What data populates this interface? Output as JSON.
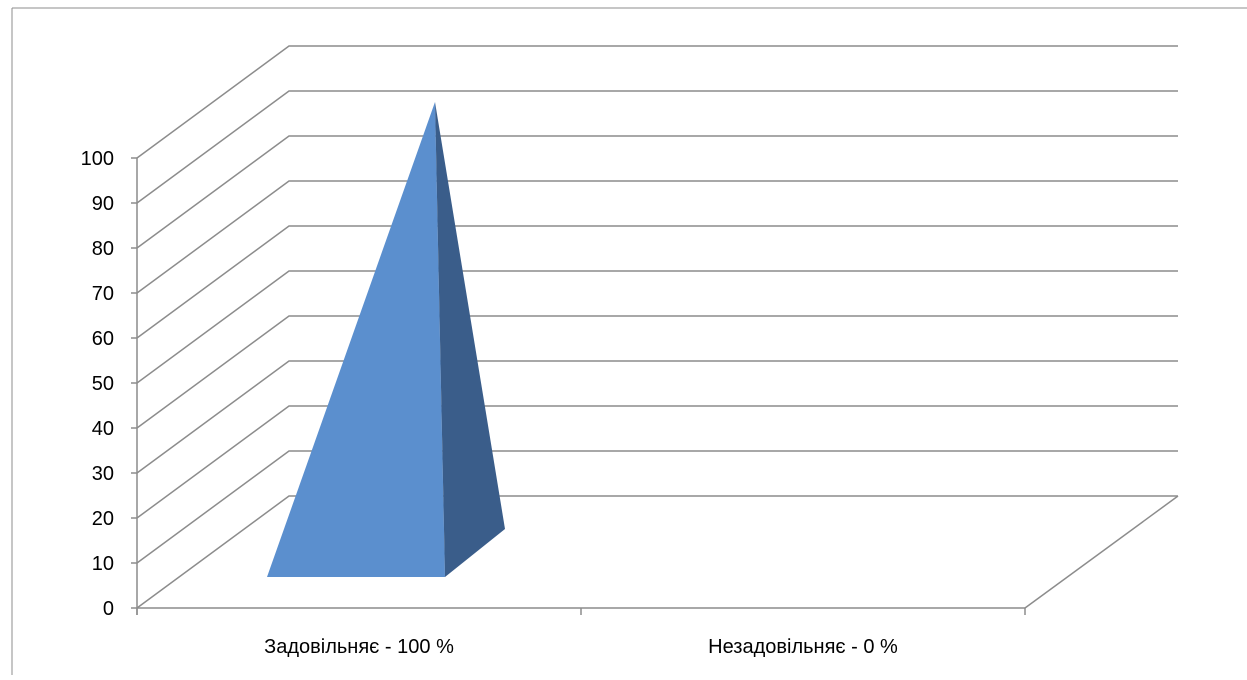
{
  "chart_data": {
    "type": "bar",
    "shape": "pyramid-3d",
    "categories": [
      "Задовільняє - 100 %",
      "Незадовільняє - 0 %"
    ],
    "values": [
      100,
      0
    ],
    "y_ticks": [
      0,
      10,
      20,
      30,
      40,
      50,
      60,
      70,
      80,
      90,
      100
    ],
    "ylim": [
      0,
      100
    ],
    "grid": true,
    "legend": "none",
    "colors": {
      "front_face": "#5b8fce",
      "side_face": "#3a5d8a",
      "gridline": "#8c8c8c",
      "axis": "#8c8c8c"
    }
  }
}
